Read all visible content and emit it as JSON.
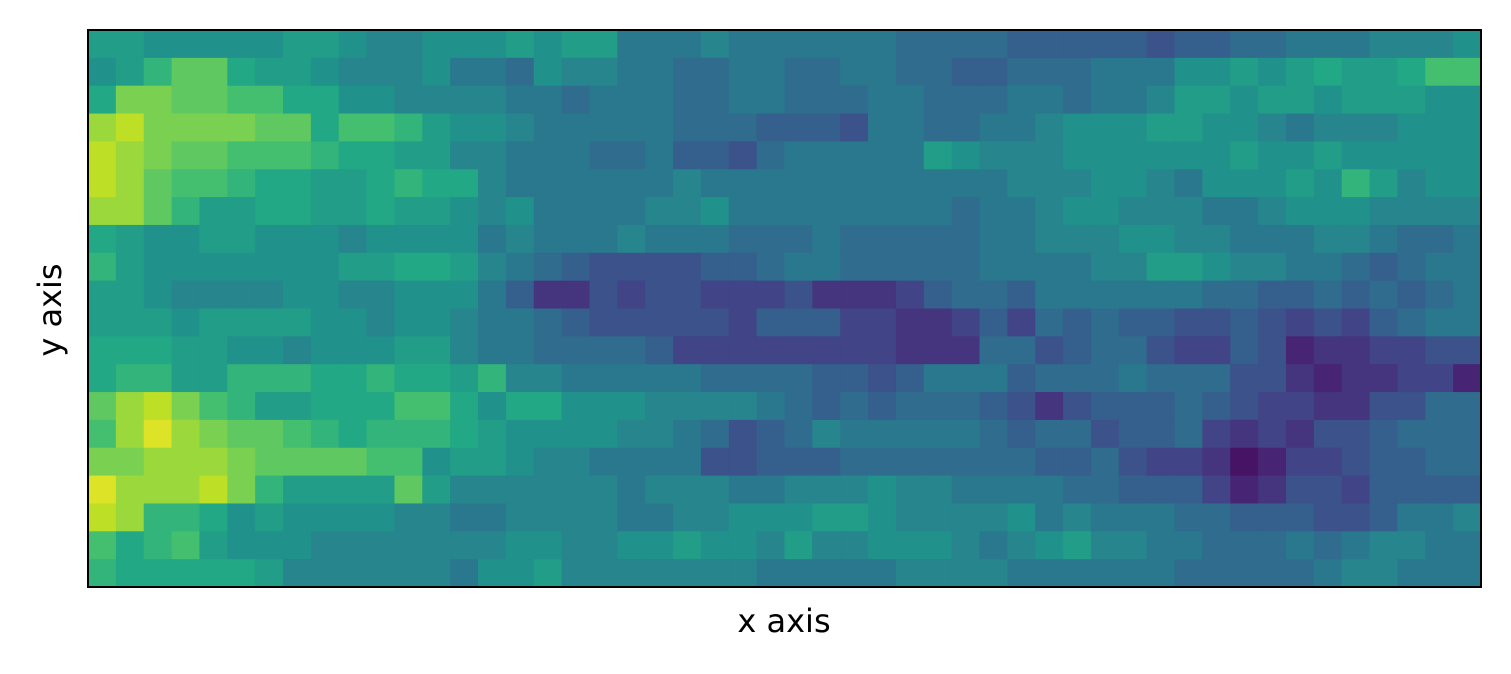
{
  "chart_data": {
    "type": "heatmap",
    "title": "",
    "xlabel": "x axis",
    "ylabel": "y axis",
    "xticks": [],
    "yticks": [],
    "grid": false,
    "colormap": "viridis",
    "colorbar": false,
    "vmin": 0.0,
    "vmax": 1.0,
    "rows": 20,
    "cols": 50,
    "values": [
      [
        0.55,
        0.55,
        0.5,
        0.5,
        0.5,
        0.5,
        0.5,
        0.55,
        0.55,
        0.5,
        0.45,
        0.45,
        0.5,
        0.5,
        0.5,
        0.55,
        0.5,
        0.55,
        0.55,
        0.4,
        0.4,
        0.4,
        0.45,
        0.4,
        0.4,
        0.4,
        0.4,
        0.4,
        0.4,
        0.35,
        0.35,
        0.35,
        0.35,
        0.3,
        0.3,
        0.3,
        0.3,
        0.3,
        0.25,
        0.3,
        0.3,
        0.35,
        0.35,
        0.4,
        0.4,
        0.4,
        0.45,
        0.45,
        0.45,
        0.5
      ],
      [
        0.5,
        0.55,
        0.65,
        0.75,
        0.75,
        0.6,
        0.55,
        0.55,
        0.5,
        0.45,
        0.45,
        0.45,
        0.5,
        0.4,
        0.4,
        0.35,
        0.5,
        0.45,
        0.45,
        0.4,
        0.4,
        0.35,
        0.35,
        0.4,
        0.4,
        0.35,
        0.35,
        0.4,
        0.4,
        0.35,
        0.35,
        0.3,
        0.3,
        0.35,
        0.35,
        0.35,
        0.4,
        0.4,
        0.4,
        0.5,
        0.5,
        0.55,
        0.5,
        0.55,
        0.6,
        0.55,
        0.55,
        0.6,
        0.7,
        0.7
      ],
      [
        0.6,
        0.8,
        0.8,
        0.75,
        0.75,
        0.7,
        0.7,
        0.6,
        0.6,
        0.5,
        0.5,
        0.45,
        0.45,
        0.45,
        0.45,
        0.4,
        0.4,
        0.35,
        0.4,
        0.4,
        0.4,
        0.35,
        0.35,
        0.4,
        0.4,
        0.35,
        0.35,
        0.35,
        0.4,
        0.4,
        0.35,
        0.35,
        0.35,
        0.4,
        0.4,
        0.35,
        0.4,
        0.4,
        0.45,
        0.55,
        0.55,
        0.5,
        0.55,
        0.55,
        0.5,
        0.55,
        0.55,
        0.55,
        0.5,
        0.5
      ],
      [
        0.85,
        0.9,
        0.8,
        0.8,
        0.8,
        0.8,
        0.75,
        0.75,
        0.6,
        0.7,
        0.7,
        0.65,
        0.55,
        0.5,
        0.5,
        0.45,
        0.4,
        0.4,
        0.4,
        0.4,
        0.4,
        0.35,
        0.35,
        0.35,
        0.3,
        0.3,
        0.3,
        0.25,
        0.4,
        0.4,
        0.35,
        0.35,
        0.4,
        0.4,
        0.45,
        0.5,
        0.5,
        0.5,
        0.55,
        0.55,
        0.5,
        0.5,
        0.45,
        0.4,
        0.45,
        0.45,
        0.45,
        0.5,
        0.5,
        0.5
      ],
      [
        0.9,
        0.85,
        0.8,
        0.75,
        0.75,
        0.7,
        0.7,
        0.7,
        0.65,
        0.6,
        0.6,
        0.55,
        0.55,
        0.45,
        0.45,
        0.4,
        0.4,
        0.4,
        0.35,
        0.35,
        0.4,
        0.3,
        0.3,
        0.25,
        0.35,
        0.4,
        0.4,
        0.4,
        0.4,
        0.4,
        0.55,
        0.5,
        0.45,
        0.45,
        0.45,
        0.5,
        0.5,
        0.5,
        0.5,
        0.5,
        0.5,
        0.55,
        0.5,
        0.5,
        0.55,
        0.5,
        0.5,
        0.5,
        0.5,
        0.5
      ],
      [
        0.9,
        0.85,
        0.75,
        0.7,
        0.7,
        0.65,
        0.6,
        0.6,
        0.55,
        0.55,
        0.6,
        0.65,
        0.6,
        0.6,
        0.45,
        0.4,
        0.4,
        0.4,
        0.4,
        0.4,
        0.4,
        0.45,
        0.4,
        0.4,
        0.4,
        0.4,
        0.4,
        0.4,
        0.4,
        0.4,
        0.4,
        0.4,
        0.4,
        0.45,
        0.45,
        0.45,
        0.5,
        0.5,
        0.45,
        0.4,
        0.5,
        0.5,
        0.5,
        0.55,
        0.5,
        0.65,
        0.55,
        0.45,
        0.5,
        0.5
      ],
      [
        0.85,
        0.85,
        0.75,
        0.65,
        0.55,
        0.55,
        0.6,
        0.6,
        0.55,
        0.55,
        0.6,
        0.55,
        0.55,
        0.5,
        0.45,
        0.5,
        0.4,
        0.4,
        0.4,
        0.4,
        0.45,
        0.45,
        0.5,
        0.4,
        0.4,
        0.4,
        0.4,
        0.4,
        0.4,
        0.4,
        0.4,
        0.35,
        0.4,
        0.4,
        0.45,
        0.5,
        0.5,
        0.45,
        0.45,
        0.45,
        0.4,
        0.4,
        0.45,
        0.5,
        0.5,
        0.5,
        0.45,
        0.45,
        0.45,
        0.45
      ],
      [
        0.6,
        0.55,
        0.5,
        0.5,
        0.55,
        0.55,
        0.5,
        0.5,
        0.5,
        0.45,
        0.5,
        0.5,
        0.5,
        0.5,
        0.4,
        0.45,
        0.4,
        0.4,
        0.4,
        0.45,
        0.4,
        0.4,
        0.4,
        0.35,
        0.35,
        0.35,
        0.4,
        0.35,
        0.35,
        0.35,
        0.35,
        0.35,
        0.4,
        0.4,
        0.45,
        0.45,
        0.45,
        0.5,
        0.5,
        0.45,
        0.45,
        0.4,
        0.4,
        0.4,
        0.45,
        0.45,
        0.4,
        0.35,
        0.35,
        0.4
      ],
      [
        0.65,
        0.55,
        0.5,
        0.5,
        0.5,
        0.5,
        0.5,
        0.5,
        0.5,
        0.55,
        0.55,
        0.6,
        0.6,
        0.55,
        0.45,
        0.4,
        0.35,
        0.3,
        0.25,
        0.25,
        0.25,
        0.25,
        0.3,
        0.3,
        0.35,
        0.4,
        0.4,
        0.35,
        0.35,
        0.35,
        0.35,
        0.35,
        0.4,
        0.4,
        0.4,
        0.4,
        0.45,
        0.45,
        0.55,
        0.55,
        0.5,
        0.45,
        0.45,
        0.4,
        0.4,
        0.35,
        0.3,
        0.35,
        0.4,
        0.4
      ],
      [
        0.55,
        0.55,
        0.5,
        0.45,
        0.45,
        0.45,
        0.45,
        0.5,
        0.5,
        0.45,
        0.45,
        0.5,
        0.5,
        0.5,
        0.4,
        0.3,
        0.15,
        0.15,
        0.25,
        0.2,
        0.25,
        0.25,
        0.2,
        0.2,
        0.2,
        0.25,
        0.15,
        0.15,
        0.15,
        0.2,
        0.3,
        0.35,
        0.35,
        0.3,
        0.4,
        0.4,
        0.4,
        0.4,
        0.4,
        0.4,
        0.35,
        0.35,
        0.3,
        0.3,
        0.35,
        0.3,
        0.35,
        0.3,
        0.35,
        0.4
      ],
      [
        0.55,
        0.55,
        0.55,
        0.5,
        0.55,
        0.55,
        0.55,
        0.55,
        0.5,
        0.5,
        0.45,
        0.5,
        0.5,
        0.45,
        0.4,
        0.4,
        0.35,
        0.3,
        0.25,
        0.25,
        0.25,
        0.25,
        0.25,
        0.2,
        0.3,
        0.3,
        0.3,
        0.2,
        0.2,
        0.15,
        0.15,
        0.2,
        0.3,
        0.2,
        0.35,
        0.3,
        0.35,
        0.3,
        0.3,
        0.25,
        0.25,
        0.3,
        0.25,
        0.2,
        0.25,
        0.2,
        0.3,
        0.35,
        0.4,
        0.4
      ],
      [
        0.6,
        0.6,
        0.6,
        0.55,
        0.55,
        0.5,
        0.5,
        0.45,
        0.5,
        0.5,
        0.5,
        0.55,
        0.55,
        0.45,
        0.4,
        0.4,
        0.35,
        0.35,
        0.35,
        0.35,
        0.3,
        0.2,
        0.2,
        0.2,
        0.2,
        0.2,
        0.2,
        0.2,
        0.2,
        0.15,
        0.15,
        0.15,
        0.35,
        0.35,
        0.25,
        0.3,
        0.35,
        0.35,
        0.25,
        0.2,
        0.2,
        0.3,
        0.25,
        0.1,
        0.15,
        0.15,
        0.2,
        0.2,
        0.25,
        0.25
      ],
      [
        0.6,
        0.65,
        0.65,
        0.55,
        0.55,
        0.65,
        0.65,
        0.65,
        0.6,
        0.6,
        0.65,
        0.6,
        0.6,
        0.55,
        0.65,
        0.45,
        0.45,
        0.4,
        0.4,
        0.4,
        0.4,
        0.4,
        0.35,
        0.35,
        0.35,
        0.35,
        0.3,
        0.3,
        0.25,
        0.3,
        0.4,
        0.4,
        0.4,
        0.3,
        0.35,
        0.35,
        0.35,
        0.4,
        0.35,
        0.35,
        0.35,
        0.25,
        0.25,
        0.15,
        0.1,
        0.15,
        0.15,
        0.2,
        0.2,
        0.1
      ],
      [
        0.75,
        0.85,
        0.9,
        0.8,
        0.7,
        0.65,
        0.55,
        0.55,
        0.6,
        0.6,
        0.6,
        0.7,
        0.7,
        0.6,
        0.5,
        0.6,
        0.6,
        0.5,
        0.5,
        0.5,
        0.45,
        0.45,
        0.45,
        0.45,
        0.4,
        0.35,
        0.3,
        0.35,
        0.3,
        0.35,
        0.35,
        0.35,
        0.3,
        0.25,
        0.15,
        0.25,
        0.3,
        0.3,
        0.3,
        0.35,
        0.3,
        0.25,
        0.2,
        0.2,
        0.15,
        0.15,
        0.25,
        0.25,
        0.35,
        0.35
      ],
      [
        0.7,
        0.85,
        0.95,
        0.85,
        0.8,
        0.75,
        0.75,
        0.7,
        0.65,
        0.6,
        0.65,
        0.65,
        0.65,
        0.6,
        0.55,
        0.5,
        0.5,
        0.5,
        0.5,
        0.45,
        0.45,
        0.4,
        0.35,
        0.25,
        0.3,
        0.35,
        0.45,
        0.4,
        0.4,
        0.4,
        0.4,
        0.4,
        0.35,
        0.3,
        0.35,
        0.35,
        0.25,
        0.3,
        0.3,
        0.35,
        0.2,
        0.15,
        0.2,
        0.15,
        0.25,
        0.25,
        0.3,
        0.35,
        0.35,
        0.35
      ],
      [
        0.8,
        0.8,
        0.85,
        0.85,
        0.85,
        0.8,
        0.75,
        0.75,
        0.75,
        0.75,
        0.7,
        0.7,
        0.5,
        0.55,
        0.55,
        0.5,
        0.45,
        0.45,
        0.4,
        0.4,
        0.4,
        0.4,
        0.25,
        0.25,
        0.3,
        0.3,
        0.3,
        0.35,
        0.35,
        0.35,
        0.35,
        0.35,
        0.35,
        0.35,
        0.3,
        0.3,
        0.35,
        0.25,
        0.2,
        0.2,
        0.15,
        0.05,
        0.1,
        0.2,
        0.2,
        0.25,
        0.3,
        0.3,
        0.35,
        0.35
      ],
      [
        0.95,
        0.85,
        0.85,
        0.85,
        0.9,
        0.8,
        0.65,
        0.55,
        0.55,
        0.55,
        0.55,
        0.75,
        0.55,
        0.45,
        0.45,
        0.45,
        0.45,
        0.45,
        0.45,
        0.4,
        0.45,
        0.45,
        0.45,
        0.4,
        0.4,
        0.45,
        0.45,
        0.45,
        0.5,
        0.45,
        0.45,
        0.4,
        0.4,
        0.4,
        0.4,
        0.35,
        0.35,
        0.3,
        0.3,
        0.3,
        0.2,
        0.1,
        0.15,
        0.25,
        0.25,
        0.2,
        0.3,
        0.3,
        0.3,
        0.3
      ],
      [
        0.9,
        0.85,
        0.65,
        0.65,
        0.6,
        0.5,
        0.55,
        0.5,
        0.5,
        0.5,
        0.5,
        0.45,
        0.45,
        0.4,
        0.4,
        0.45,
        0.45,
        0.45,
        0.45,
        0.4,
        0.4,
        0.45,
        0.45,
        0.5,
        0.5,
        0.5,
        0.55,
        0.55,
        0.5,
        0.45,
        0.45,
        0.45,
        0.45,
        0.5,
        0.4,
        0.45,
        0.4,
        0.4,
        0.4,
        0.35,
        0.35,
        0.3,
        0.3,
        0.3,
        0.25,
        0.25,
        0.3,
        0.4,
        0.4,
        0.45
      ],
      [
        0.7,
        0.6,
        0.65,
        0.7,
        0.55,
        0.5,
        0.5,
        0.5,
        0.45,
        0.45,
        0.45,
        0.45,
        0.45,
        0.45,
        0.45,
        0.5,
        0.5,
        0.45,
        0.45,
        0.5,
        0.5,
        0.55,
        0.5,
        0.5,
        0.45,
        0.55,
        0.45,
        0.45,
        0.5,
        0.5,
        0.5,
        0.45,
        0.4,
        0.45,
        0.5,
        0.55,
        0.45,
        0.45,
        0.4,
        0.4,
        0.35,
        0.35,
        0.35,
        0.4,
        0.35,
        0.4,
        0.45,
        0.45,
        0.4,
        0.4
      ],
      [
        0.65,
        0.6,
        0.6,
        0.6,
        0.6,
        0.6,
        0.55,
        0.45,
        0.45,
        0.45,
        0.45,
        0.45,
        0.45,
        0.4,
        0.5,
        0.5,
        0.55,
        0.45,
        0.45,
        0.45,
        0.45,
        0.45,
        0.45,
        0.45,
        0.4,
        0.4,
        0.4,
        0.4,
        0.4,
        0.45,
        0.45,
        0.45,
        0.45,
        0.4,
        0.4,
        0.4,
        0.4,
        0.4,
        0.4,
        0.35,
        0.35,
        0.35,
        0.35,
        0.35,
        0.4,
        0.45,
        0.45,
        0.4,
        0.4,
        0.4
      ]
    ]
  }
}
